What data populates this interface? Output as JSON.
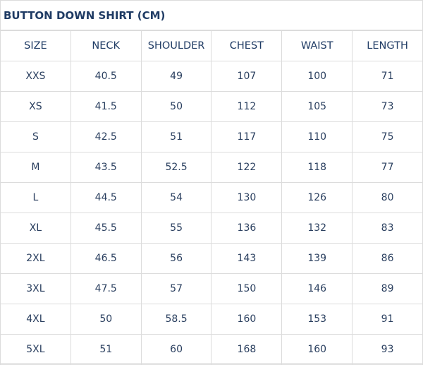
{
  "title": "BUTTON DOWN SHIRT (CM)",
  "headers": [
    "SIZE",
    "NECK",
    "SHOULDER",
    "CHEST",
    "WAIST",
    "LENGTH"
  ],
  "rows": [
    [
      "XXS",
      "40.5",
      "49",
      "107",
      "100",
      "71"
    ],
    [
      "XS",
      "41.5",
      "50",
      "112",
      "105",
      "73"
    ],
    [
      "S",
      "42.5",
      "51",
      "117",
      "110",
      "75"
    ],
    [
      "M",
      "43.5",
      "52.5",
      "122",
      "118",
      "77"
    ],
    [
      "L",
      "44.5",
      "54",
      "130",
      "126",
      "80"
    ],
    [
      "XL",
      "45.5",
      "55",
      "136",
      "132",
      "83"
    ],
    [
      "2XL",
      "46.5",
      "56",
      "143",
      "139",
      "86"
    ],
    [
      "3XL",
      "47.5",
      "57",
      "150",
      "146",
      "89"
    ],
    [
      "4XL",
      "50",
      "58.5",
      "160",
      "153",
      "91"
    ],
    [
      "5XL",
      "51",
      "60",
      "168",
      "160",
      "93"
    ]
  ]
}
